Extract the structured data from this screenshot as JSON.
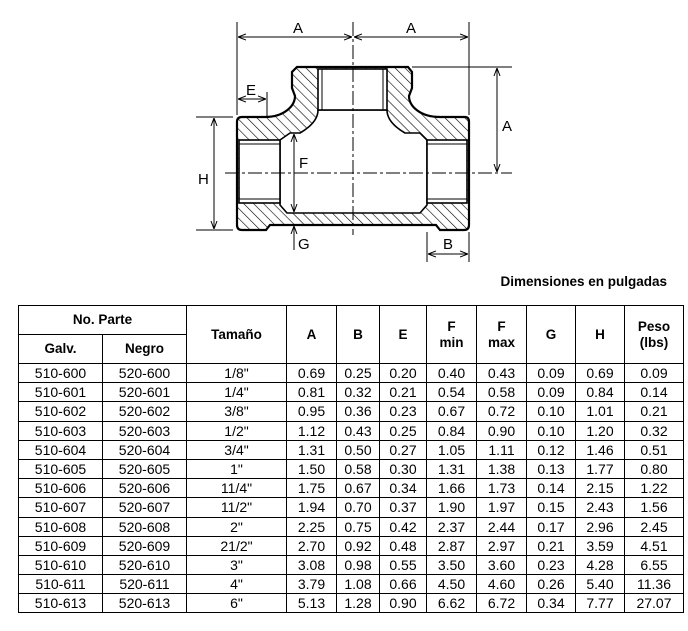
{
  "drawing": {
    "labels": {
      "a_left": "A",
      "a_right": "A",
      "a_vertical": "A",
      "e": "E",
      "f": "F",
      "h": "H",
      "g": "G",
      "b": "B"
    }
  },
  "caption": "Dimensiones en pulgadas",
  "table": {
    "headers": {
      "part_no": "No. Parte",
      "galv": "Galv.",
      "negro": "Negro",
      "tamano": "Tamaño",
      "a": "A",
      "b": "B",
      "e": "E",
      "f_min_1": "F",
      "f_min_2": "min",
      "f_max_1": "F",
      "f_max_2": "max",
      "g": "G",
      "h": "H",
      "peso_1": "Peso",
      "peso_2": "(lbs)"
    },
    "rows": [
      [
        "510-600",
        "520-600",
        "1/8\"",
        "0.69",
        "0.25",
        "0.20",
        "0.40",
        "0.43",
        "0.09",
        "0.69",
        "0.09"
      ],
      [
        "510-601",
        "520-601",
        "1/4\"",
        "0.81",
        "0.32",
        "0.21",
        "0.54",
        "0.58",
        "0.09",
        "0.84",
        "0.14"
      ],
      [
        "510-602",
        "520-602",
        "3/8\"",
        "0.95",
        "0.36",
        "0.23",
        "0.67",
        "0.72",
        "0.10",
        "1.01",
        "0.21"
      ],
      [
        "510-603",
        "520-603",
        "1/2\"",
        "1.12",
        "0.43",
        "0.25",
        "0.84",
        "0.90",
        "0.10",
        "1.20",
        "0.32"
      ],
      [
        "510-604",
        "520-604",
        "3/4\"",
        "1.31",
        "0.50",
        "0.27",
        "1.05",
        "1.11",
        "0.12",
        "1.46",
        "0.51"
      ],
      [
        "510-605",
        "520-605",
        "1\"",
        "1.50",
        "0.58",
        "0.30",
        "1.31",
        "1.38",
        "0.13",
        "1.77",
        "0.80"
      ],
      [
        "510-606",
        "520-606",
        "11/4\"",
        "1.75",
        "0.67",
        "0.34",
        "1.66",
        "1.73",
        "0.14",
        "2.15",
        "1.22"
      ],
      [
        "510-607",
        "520-607",
        "11/2\"",
        "1.94",
        "0.70",
        "0.37",
        "1.90",
        "1.97",
        "0.15",
        "2.43",
        "1.56"
      ],
      [
        "510-608",
        "520-608",
        "2\"",
        "2.25",
        "0.75",
        "0.42",
        "2.37",
        "2.44",
        "0.17",
        "2.96",
        "2.45"
      ],
      [
        "510-609",
        "520-609",
        "21/2\"",
        "2.70",
        "0.92",
        "0.48",
        "2.87",
        "2.97",
        "0.21",
        "3.59",
        "4.51"
      ],
      [
        "510-610",
        "520-610",
        "3\"",
        "3.08",
        "0.98",
        "0.55",
        "3.50",
        "3.60",
        "0.23",
        "4.28",
        "6.55"
      ],
      [
        "510-611",
        "520-611",
        "4\"",
        "3.79",
        "1.08",
        "0.66",
        "4.50",
        "4.60",
        "0.26",
        "5.40",
        "11.36"
      ],
      [
        "510-613",
        "520-613",
        "6\"",
        "5.13",
        "1.28",
        "0.90",
        "6.62",
        "6.72",
        "0.34",
        "7.77",
        "27.07"
      ]
    ]
  }
}
